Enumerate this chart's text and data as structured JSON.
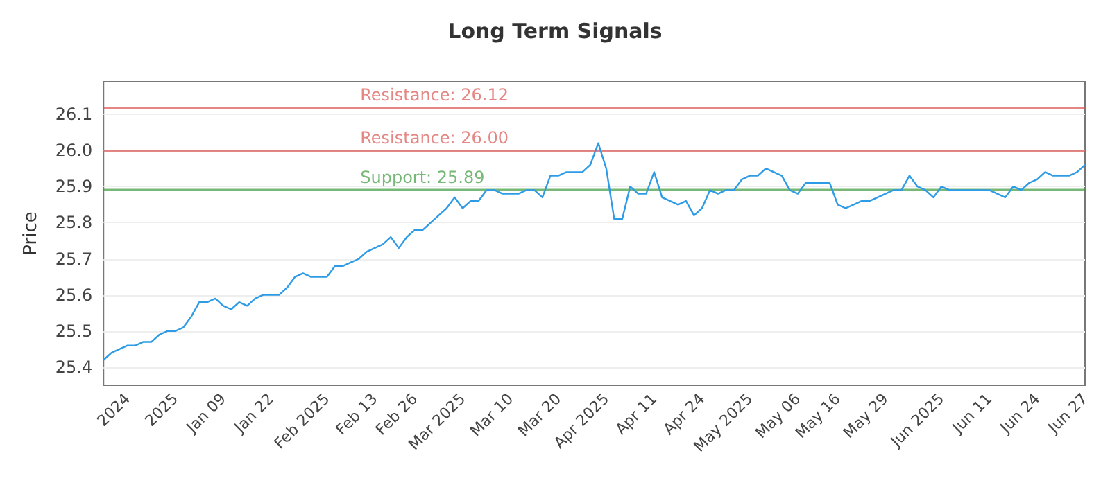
{
  "chart_data": {
    "type": "line",
    "title": "Long Term Signals",
    "ylabel": "Price",
    "categories": [
      null,
      null,
      null,
      "2024",
      null,
      null,
      null,
      null,
      null,
      "2025",
      null,
      null,
      null,
      null,
      null,
      "Jan 09",
      null,
      null,
      null,
      null,
      null,
      "Jan 22",
      null,
      null,
      null,
      null,
      null,
      null,
      "Feb 2025",
      null,
      null,
      null,
      null,
      null,
      "Feb 13",
      null,
      null,
      null,
      null,
      "Feb 26",
      null,
      null,
      null,
      null,
      null,
      "Mar 2025",
      null,
      null,
      null,
      null,
      null,
      "Mar 10",
      null,
      null,
      null,
      null,
      null,
      "Mar 20",
      null,
      null,
      null,
      null,
      null,
      "Apr 2025",
      null,
      null,
      null,
      null,
      null,
      "Apr 11",
      null,
      null,
      null,
      null,
      null,
      "Apr 24",
      null,
      null,
      null,
      null,
      null,
      "May 2025",
      null,
      null,
      null,
      null,
      null,
      "May 06",
      null,
      null,
      null,
      null,
      "May 16",
      null,
      null,
      null,
      null,
      null,
      "May 29",
      null,
      null,
      null,
      null,
      null,
      null,
      "Jun 2025",
      null,
      null,
      null,
      null,
      null,
      "Jun 11",
      null,
      null,
      null,
      null,
      null,
      "Jun 24",
      null,
      null,
      null,
      null,
      null,
      "Jun 27"
    ],
    "series": [
      {
        "color": "#2e9be6",
        "values": [
          25.42,
          25.44,
          25.45,
          25.46,
          25.46,
          25.47,
          25.47,
          25.49,
          25.5,
          25.5,
          25.51,
          25.54,
          25.58,
          25.58,
          25.59,
          25.57,
          25.56,
          25.58,
          25.57,
          25.59,
          25.6,
          25.6,
          25.6,
          25.62,
          25.65,
          25.66,
          25.65,
          25.65,
          25.65,
          25.68,
          25.68,
          25.69,
          25.7,
          25.72,
          25.73,
          25.74,
          25.76,
          25.73,
          25.76,
          25.78,
          25.78,
          25.8,
          25.82,
          25.84,
          25.87,
          25.84,
          25.86,
          25.86,
          25.89,
          25.89,
          25.88,
          25.88,
          25.88,
          25.89,
          25.89,
          25.87,
          25.93,
          25.93,
          25.94,
          25.94,
          25.94,
          25.96,
          26.02,
          25.95,
          25.81,
          25.81,
          25.9,
          25.88,
          25.88,
          25.94,
          25.87,
          25.86,
          25.85,
          25.86,
          25.82,
          25.84,
          25.89,
          25.88,
          25.89,
          25.89,
          25.92,
          25.93,
          25.93,
          25.95,
          25.94,
          25.93,
          25.89,
          25.88,
          25.91,
          25.91,
          25.91,
          25.91,
          25.85,
          25.84,
          25.85,
          25.86,
          25.86,
          25.87,
          25.88,
          25.89,
          25.89,
          25.93,
          25.9,
          25.89,
          25.87,
          25.9,
          25.89,
          25.89,
          25.89,
          25.89,
          25.89,
          25.89,
          25.88,
          25.87,
          25.9,
          25.89,
          25.91,
          25.92,
          25.94,
          25.93,
          25.93,
          25.93,
          25.94,
          25.96
        ]
      }
    ],
    "ylim": [
      25.35,
      26.19
    ],
    "yticks": [
      25.4,
      25.5,
      25.6,
      25.7,
      25.8,
      25.9,
      {
        "value": 26.0,
        "label": "26.0"
      },
      26.1
    ],
    "grid": "y",
    "marker": "none",
    "line_style": "solid",
    "ref_lines": [
      {
        "axis": "y",
        "value": 26.12,
        "label": "Resistance: 26.12",
        "color": "#d9534f"
      },
      {
        "axis": "y",
        "value": 26.0,
        "label": "Resistance: 26.00",
        "color": "#d9534f"
      },
      {
        "axis": "y",
        "value": 25.89,
        "label": "Support: 25.89",
        "color": "#3c9a3c"
      }
    ]
  }
}
